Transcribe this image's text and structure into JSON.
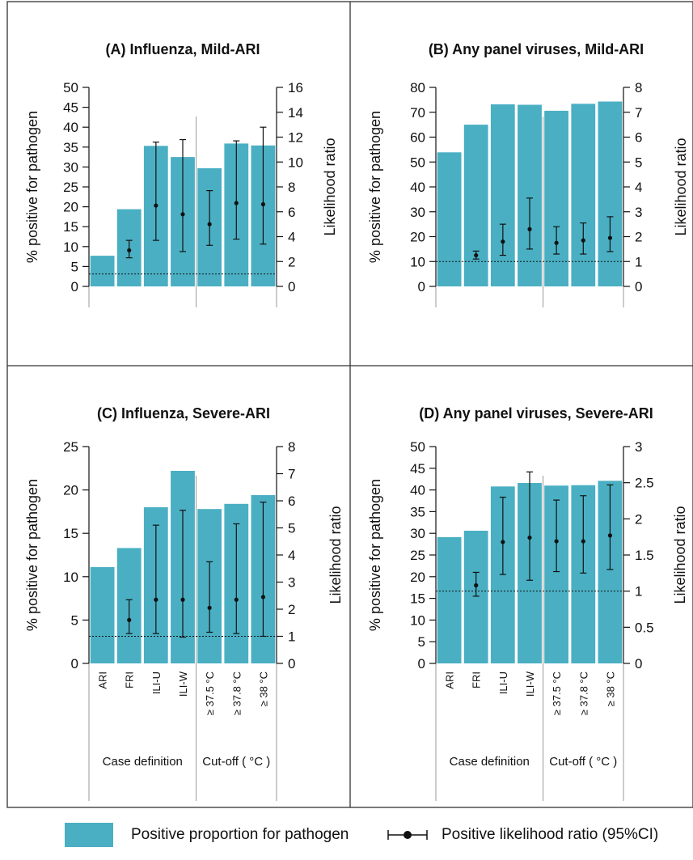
{
  "colors": {
    "bar": "#4AAFC3",
    "mark": "#111111",
    "panel_border": "#333333",
    "separator": "#999999"
  },
  "legend": {
    "bar_label": "Positive proportion for pathogen",
    "lr_label": "Positive likelihood ratio (95%CI)"
  },
  "x_footer": {
    "case_definition": "Case definition",
    "cutoff": "Cut-off ( °C )"
  },
  "chart_data": [
    {
      "type": "bar",
      "title": "(A) Influenza, Mild-ARI",
      "ylabel": "% positive for pathogen",
      "y2label": "Likelihood ratio",
      "categories": [
        "ARI",
        "FRI",
        "ILI-U",
        "ILI-W",
        "≥ 37.5 °C",
        "≥ 37.8 °C",
        "≥ 38 °C"
      ],
      "show_category_labels": false,
      "ylim": [
        0,
        50
      ],
      "yticks": [
        0,
        5,
        10,
        15,
        20,
        25,
        30,
        35,
        40,
        45,
        50
      ],
      "y2lim": [
        0,
        16
      ],
      "y2ticks": [
        0,
        2,
        4,
        6,
        8,
        10,
        12,
        14,
        16
      ],
      "reference_line_lr": 1,
      "series": [
        {
          "name": "Positive proportion for pathogen",
          "axis": "left",
          "values": [
            7.7,
            19.4,
            35.3,
            32.5,
            29.7,
            35.9,
            35.4
          ]
        },
        {
          "name": "Positive likelihood ratio (95%CI)",
          "axis": "right",
          "values": [
            null,
            2.9,
            6.5,
            5.8,
            5.0,
            6.7,
            6.6
          ],
          "lower": [
            null,
            2.3,
            3.7,
            2.8,
            3.3,
            3.8,
            3.4
          ],
          "upper": [
            null,
            3.7,
            11.6,
            11.8,
            7.7,
            11.7,
            12.8
          ]
        }
      ]
    },
    {
      "type": "bar",
      "title": "(B) Any panel viruses, Mild-ARI",
      "ylabel": "% positive for pathogen",
      "y2label": "Likelihood ratio",
      "categories": [
        "ARI",
        "FRI",
        "ILI-U",
        "ILI-W",
        "≥ 37.5 °C",
        "≥ 37.8 °C",
        "≥ 38 °C"
      ],
      "show_category_labels": false,
      "ylim": [
        0,
        80
      ],
      "yticks": [
        0,
        10,
        20,
        30,
        40,
        50,
        60,
        70,
        80
      ],
      "y2lim": [
        0,
        8
      ],
      "y2ticks": [
        0,
        1,
        2,
        3,
        4,
        5,
        6,
        7,
        8
      ],
      "reference_line_lr": 1,
      "series": [
        {
          "name": "Positive proportion for pathogen",
          "axis": "left",
          "values": [
            53.9,
            65.0,
            73.2,
            73.0,
            70.6,
            73.4,
            74.3
          ]
        },
        {
          "name": "Positive likelihood ratio (95%CI)",
          "axis": "right",
          "values": [
            null,
            1.25,
            1.8,
            2.3,
            1.75,
            1.85,
            1.95
          ],
          "lower": [
            null,
            1.1,
            1.25,
            1.5,
            1.3,
            1.3,
            1.4
          ],
          "upper": [
            null,
            1.42,
            2.5,
            3.55,
            2.4,
            2.55,
            2.8
          ]
        }
      ]
    },
    {
      "type": "bar",
      "title": "(C) Influenza, Severe-ARI",
      "ylabel": "% positive for pathogen",
      "y2label": "Likelihood ratio",
      "categories": [
        "ARI",
        "FRI",
        "ILI-U",
        "ILI-W",
        "≥ 37.5 °C",
        "≥ 37.8 °C",
        "≥ 38 °C"
      ],
      "show_category_labels": true,
      "ylim": [
        0,
        25
      ],
      "yticks": [
        0,
        5,
        10,
        15,
        20,
        25
      ],
      "y2lim": [
        0,
        8
      ],
      "y2ticks": [
        0,
        1,
        2,
        3,
        4,
        5,
        6,
        7,
        8
      ],
      "reference_line_lr": 1,
      "series": [
        {
          "name": "Positive proportion for pathogen",
          "axis": "left",
          "values": [
            11.1,
            13.3,
            18.0,
            22.2,
            17.8,
            18.4,
            19.4
          ]
        },
        {
          "name": "Positive likelihood ratio (95%CI)",
          "axis": "right",
          "values": [
            null,
            1.6,
            2.35,
            2.35,
            2.05,
            2.35,
            2.45
          ],
          "lower": [
            null,
            1.1,
            1.1,
            0.97,
            1.15,
            1.1,
            1.0
          ],
          "upper": [
            null,
            2.35,
            5.1,
            5.65,
            3.75,
            5.15,
            5.95
          ]
        }
      ]
    },
    {
      "type": "bar",
      "title": "(D) Any panel viruses, Severe-ARI",
      "ylabel": "% positive for pathogen",
      "y2label": "Likelihood ratio",
      "categories": [
        "ARI",
        "FRI",
        "ILI-U",
        "ILI-W",
        "≥ 37.5 °C",
        "≥ 37.8 °C",
        "≥ 38 °C"
      ],
      "show_category_labels": true,
      "ylim": [
        0,
        50
      ],
      "yticks": [
        0,
        5,
        10,
        15,
        20,
        25,
        30,
        35,
        40,
        45,
        50
      ],
      "y2lim": [
        0,
        3
      ],
      "y2ticks": [
        0,
        0.5,
        1,
        1.5,
        2,
        2.5,
        3
      ],
      "y2ticklabels": [
        "0",
        "0.5",
        "1",
        "1.5",
        "2",
        "2.5",
        "3"
      ],
      "reference_line_lr": 1,
      "series": [
        {
          "name": "Positive proportion for pathogen",
          "axis": "left",
          "values": [
            29.1,
            30.6,
            40.8,
            41.6,
            41.0,
            41.1,
            42.1
          ]
        },
        {
          "name": "Positive likelihood ratio (95%CI)",
          "axis": "right",
          "values": [
            null,
            1.08,
            1.68,
            1.74,
            1.69,
            1.69,
            1.77
          ],
          "lower": [
            null,
            0.93,
            1.23,
            1.15,
            1.27,
            1.25,
            1.3
          ],
          "upper": [
            null,
            1.26,
            2.3,
            2.65,
            2.26,
            2.32,
            2.47
          ]
        }
      ]
    }
  ]
}
